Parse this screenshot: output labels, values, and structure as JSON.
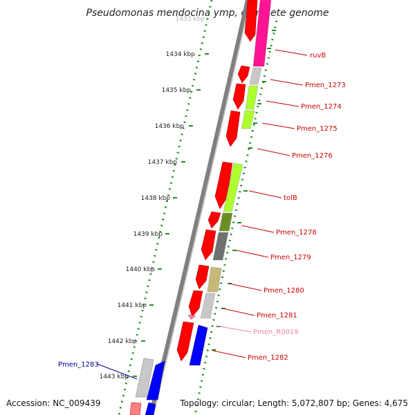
{
  "title": "Pseudomonas mendocina ymp, complete genome",
  "accession": "Accession: NC_009439",
  "topology": "Topology: circular; Length: 5,072,807 bp; Genes: 4,675",
  "scale": {
    "labels": [
      "1433 kbp",
      "1434 kbp",
      "1435 kbp",
      "1436 kbp",
      "1437 kbp",
      "1438 kbp",
      "1439 kbp",
      "1440 kbp",
      "1441 kbp",
      "1442 kbp",
      "1443 kbp"
    ]
  },
  "colors": {
    "cds_strand": "#ff0000",
    "label_red": "#cc0000",
    "rna_label": "#f080b0",
    "neg_label": "#000099",
    "backbone": "#808080",
    "scale_tick": "#228b22"
  },
  "gene_labels": [
    {
      "name": "ruvB",
      "color": "#cc0000"
    },
    {
      "name": "Pmen_1273",
      "color": "#cc0000"
    },
    {
      "name": "Pmen_1274",
      "color": "#cc0000"
    },
    {
      "name": "Pmen_1275",
      "color": "#cc0000"
    },
    {
      "name": "Pmen_1276",
      "color": "#cc0000"
    },
    {
      "name": "tolB",
      "color": "#cc0000"
    },
    {
      "name": "Pmen_1278",
      "color": "#cc0000"
    },
    {
      "name": "Pmen_1279",
      "color": "#cc0000"
    },
    {
      "name": "Pmen_1280",
      "color": "#cc0000"
    },
    {
      "name": "Pmen_1281",
      "color": "#cc0000"
    },
    {
      "name": "Pmen_R0019",
      "color": "#f080b0"
    },
    {
      "name": "Pmen_1282",
      "color": "#cc0000"
    },
    {
      "name": "Pmen_1283",
      "color": "#000099"
    }
  ]
}
